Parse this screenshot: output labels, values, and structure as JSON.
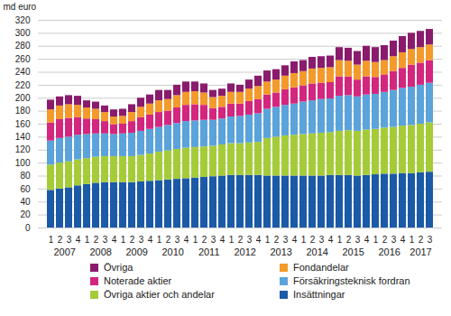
{
  "chart_data": {
    "type": "bar",
    "stacked": true,
    "grid": true,
    "legend": "bottom",
    "ylabel": "md euro",
    "ylim": [
      0,
      320
    ],
    "yticks": [
      0,
      20,
      40,
      60,
      80,
      100,
      120,
      140,
      160,
      180,
      200,
      220,
      240,
      260,
      280,
      300,
      320
    ],
    "categories": [
      "1",
      "2",
      "3",
      "4",
      "1",
      "2",
      "3",
      "4",
      "1",
      "2",
      "3",
      "4",
      "1",
      "2",
      "3",
      "4",
      "1",
      "2",
      "3",
      "4",
      "1",
      "2",
      "3",
      "4",
      "1",
      "2",
      "3",
      "4",
      "1",
      "2",
      "3",
      "4",
      "1",
      "2",
      "3",
      "4",
      "1",
      "2",
      "3",
      "4",
      "1",
      "2",
      "3"
    ],
    "years": [
      "2007",
      "2008",
      "2009",
      "2010",
      "2011",
      "2012",
      "2013",
      "2014",
      "2015",
      "2016",
      "2017"
    ],
    "series": [
      {
        "name": "Insättningar",
        "color": "#1b5aa6",
        "values": [
          58,
          60,
          62,
          65,
          67,
          69,
          70,
          70,
          70,
          70,
          71,
          72,
          73,
          74,
          75,
          76,
          77,
          78,
          79,
          80,
          81,
          81,
          81,
          81,
          80,
          80,
          80,
          80,
          80,
          80,
          80,
          81,
          81,
          81,
          80,
          81,
          82,
          83,
          83,
          84,
          84,
          85,
          86
        ]
      },
      {
        "name": "Övriga aktier och andelar",
        "color": "#a5cc38",
        "values": [
          39,
          40,
          40,
          40,
          40,
          40,
          40,
          40,
          40,
          40,
          41,
          42,
          44,
          45,
          46,
          47,
          47,
          47,
          47,
          48,
          49,
          49,
          50,
          51,
          58,
          60,
          62,
          63,
          64,
          65,
          66,
          66,
          68,
          69,
          69,
          70,
          70,
          71,
          72,
          73,
          74,
          75,
          76
        ]
      },
      {
        "name": "Försäkringsteknisk fordran",
        "color": "#5aa3db",
        "values": [
          37,
          38,
          38,
          38,
          37,
          36,
          35,
          34,
          35,
          36,
          37,
          38,
          38,
          39,
          40,
          41,
          41,
          41,
          40,
          40,
          41,
          42,
          43,
          44,
          45,
          46,
          47,
          48,
          50,
          51,
          52,
          52,
          54,
          54,
          53,
          54,
          54,
          55,
          57,
          58,
          59,
          60,
          61
        ]
      },
      {
        "name": "Noterade aktier",
        "color": "#d3267f",
        "values": [
          28,
          29,
          29,
          27,
          24,
          22,
          19,
          15,
          15,
          18,
          21,
          22,
          23,
          22,
          24,
          25,
          25,
          23,
          18,
          18,
          20,
          19,
          21,
          22,
          22,
          22,
          24,
          25,
          25,
          26,
          25,
          25,
          30,
          29,
          26,
          28,
          26,
          27,
          29,
          31,
          34,
          34,
          35
        ]
      },
      {
        "name": "Fondandelar",
        "color": "#f39a2b",
        "values": [
          20,
          21,
          21,
          19,
          17,
          16,
          14,
          12,
          12,
          14,
          16,
          17,
          18,
          18,
          19,
          20,
          20,
          19,
          17,
          17,
          18,
          18,
          19,
          20,
          20,
          20,
          21,
          22,
          22,
          23,
          23,
          23,
          25,
          24,
          23,
          24,
          23,
          22,
          23,
          24,
          24,
          24,
          24
        ]
      },
      {
        "name": "Övriga",
        "color": "#8a1b6c",
        "values": [
          15,
          14,
          14,
          14,
          11,
          11,
          10,
          11,
          11,
          12,
          14,
          14,
          16,
          14,
          16,
          16,
          15,
          14,
          11,
          11,
          13,
          11,
          14,
          16,
          17,
          16,
          16,
          18,
          17,
          18,
          18,
          18,
          20,
          20,
          21,
          23,
          23,
          23,
          24,
          25,
          25,
          25,
          24
        ]
      }
    ]
  }
}
